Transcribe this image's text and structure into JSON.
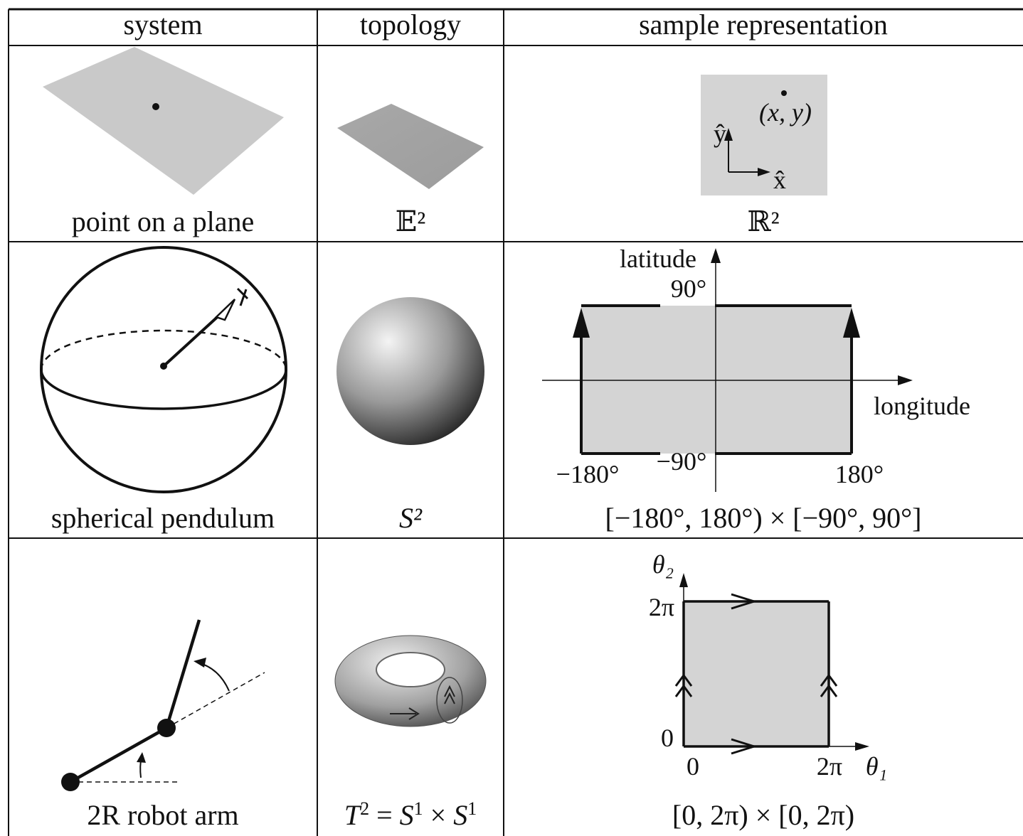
{
  "table": {
    "headers": [
      "system",
      "topology",
      "sample representation"
    ],
    "rows": [
      {
        "system": "point on a plane",
        "topology": "𝔼²",
        "representation": "ℝ²",
        "rep_labels": {
          "point": "(x, y)",
          "y_axis": "ŷ",
          "x_axis": "x̂"
        }
      },
      {
        "system": "spherical pendulum",
        "topology": "S²",
        "representation": "[−180°, 180°) × [−90°, 90°]",
        "rep_labels": {
          "vertical_axis": "latitude",
          "horizontal_axis": "longitude",
          "top": "90°",
          "bottom": "−90°",
          "left": "−180°",
          "right": "180°"
        }
      },
      {
        "system": "2R robot arm",
        "topology": "T² = S¹ × S¹",
        "representation": "[0, 2π) × [0, 2π)",
        "rep_labels": {
          "vertical_axis": "θ₂",
          "horizontal_axis": "θ₁",
          "top": "2π",
          "bottom": "0",
          "left": "0",
          "right": "2π"
        }
      }
    ]
  },
  "colors": {
    "fill_gray": "#d4d4d4",
    "plane_gray": "#c8c8c8",
    "line": "#111111"
  }
}
